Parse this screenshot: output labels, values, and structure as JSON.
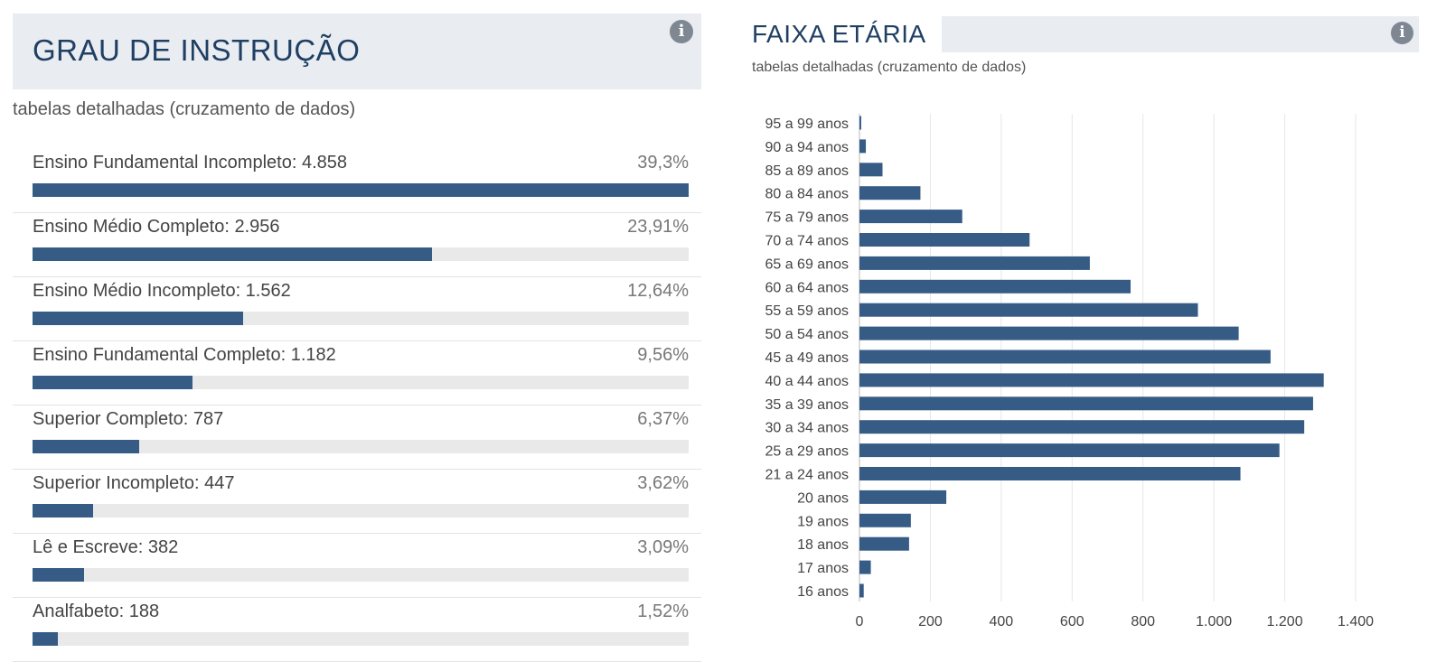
{
  "grau": {
    "title": "GRAU DE INSTRUÇÃO",
    "subtitle": "tabelas detalhadas (cruzamento de dados)",
    "info_icon": "info-icon",
    "items": [
      {
        "label": "Ensino Fundamental Incompleto: 4.858",
        "pct": "39,3%",
        "value": 4858
      },
      {
        "label": "Ensino Médio Completo: 2.956",
        "pct": "23,91%",
        "value": 2956
      },
      {
        "label": "Ensino Médio Incompleto: 1.562",
        "pct": "12,64%",
        "value": 1562
      },
      {
        "label": "Ensino Fundamental Completo: 1.182",
        "pct": "9,56%",
        "value": 1182
      },
      {
        "label": "Superior Completo: 787",
        "pct": "6,37%",
        "value": 787
      },
      {
        "label": "Superior Incompleto: 447",
        "pct": "3,62%",
        "value": 447
      },
      {
        "label": "Lê e Escreve: 382",
        "pct": "3,09%",
        "value": 382
      },
      {
        "label": "Analfabeto: 188",
        "pct": "1,52%",
        "value": 188
      }
    ]
  },
  "faixa": {
    "title": "FAIXA ETÁRIA",
    "subtitle": "tabelas detalhadas (cruzamento de dados)",
    "info_icon": "info-icon"
  },
  "colors": {
    "bar": "#365c86",
    "track": "#e9e9e9",
    "header_bg": "#e9ecf1",
    "title": "#1f3f63"
  },
  "chart_data": [
    {
      "type": "bar",
      "orientation": "horizontal",
      "categories": [
        "Ensino Fundamental Incompleto",
        "Ensino Médio Completo",
        "Ensino Médio Incompleto",
        "Ensino Fundamental Completo",
        "Superior Completo",
        "Superior Incompleto",
        "Lê e Escreve",
        "Analfabeto"
      ],
      "values": [
        4858,
        2956,
        1562,
        1182,
        787,
        447,
        382,
        188
      ],
      "percentages": [
        39.3,
        23.91,
        12.64,
        9.56,
        6.37,
        3.62,
        3.09,
        1.52
      ],
      "title": "GRAU DE INSTRUÇÃO"
    },
    {
      "type": "bar",
      "orientation": "horizontal",
      "title": "FAIXA ETÁRIA",
      "categories": [
        "95 a 99 anos",
        "90 a 94 anos",
        "85 a 89 anos",
        "80 a 84 anos",
        "75 a 79 anos",
        "70 a 74 anos",
        "65 a 69 anos",
        "60 a 64 anos",
        "55 a 59 anos",
        "50 a 54 anos",
        "45 a 49 anos",
        "40 a 44 anos",
        "35 a 39 anos",
        "30 a 34 anos",
        "25 a 29 anos",
        "21 a 24 anos",
        "20 anos",
        "19 anos",
        "18 anos",
        "17 anos",
        "16 anos"
      ],
      "values": [
        5,
        18,
        65,
        172,
        290,
        480,
        650,
        765,
        955,
        1070,
        1160,
        1310,
        1280,
        1255,
        1185,
        1075,
        245,
        145,
        140,
        32,
        12
      ],
      "xlim": [
        0,
        1400
      ],
      "xticks": [
        0,
        200,
        400,
        600,
        800,
        1000,
        1200,
        1400
      ],
      "xtick_labels": [
        "0",
        "200",
        "400",
        "600",
        "800",
        "1.000",
        "1.200",
        "1.400"
      ],
      "grid": true
    }
  ]
}
